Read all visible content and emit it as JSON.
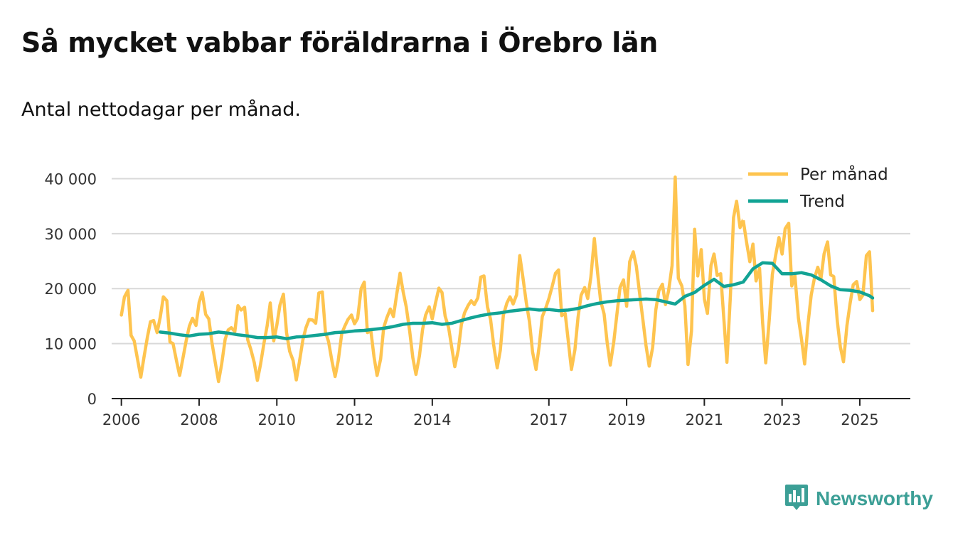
{
  "title": "Så mycket vabbar föräldrarna i Örebro län",
  "subtitle": "Antal nettodagar per månad.",
  "brand": {
    "name": "Newsworthy",
    "icon": "newsworthy-logo-icon"
  },
  "colors": {
    "monthly": "#fec44f",
    "trend": "#12a394",
    "grid": "#d9d9d9",
    "axis": "#222222",
    "brand": "#3c9f96"
  },
  "chart_data": {
    "type": "line",
    "title": "Så mycket vabbar föräldrarna i Örebro län",
    "ylabel": "Antal nettodagar per månad.",
    "xlabel": "",
    "ylim": [
      0,
      42000
    ],
    "xlim": [
      2005.75,
      2026.3
    ],
    "yticks": [
      0,
      10000,
      20000,
      30000,
      40000
    ],
    "ytick_labels": [
      "0",
      "10 000",
      "20 000",
      "30 000",
      "40 000"
    ],
    "xticks": [
      2006,
      2008,
      2010,
      2012,
      2014,
      2017,
      2019,
      2021,
      2023,
      2025
    ],
    "xtick_labels": [
      "2006",
      "2008",
      "2010",
      "2012",
      "2014",
      "2017",
      "2019",
      "2021",
      "2023",
      "2025"
    ],
    "legend": {
      "position": "top-right",
      "entries": [
        "Per månad",
        "Trend"
      ]
    },
    "series": [
      {
        "name": "Per månad",
        "color": "#fec44f",
        "x": [
          2006.0,
          2006.08,
          2006.17,
          2006.25,
          2006.33,
          2006.42,
          2006.5,
          2006.58,
          2006.67,
          2006.75,
          2006.83,
          2006.92,
          2007.0,
          2007.08,
          2007.17,
          2007.25,
          2007.33,
          2007.42,
          2007.5,
          2007.58,
          2007.67,
          2007.75,
          2007.83,
          2007.92,
          2008.0,
          2008.08,
          2008.17,
          2008.25,
          2008.33,
          2008.42,
          2008.5,
          2008.58,
          2008.67,
          2008.75,
          2008.83,
          2008.92,
          2009.0,
          2009.08,
          2009.17,
          2009.25,
          2009.33,
          2009.42,
          2009.5,
          2009.58,
          2009.67,
          2009.75,
          2009.83,
          2009.92,
          2010.0,
          2010.08,
          2010.17,
          2010.25,
          2010.33,
          2010.42,
          2010.5,
          2010.58,
          2010.67,
          2010.75,
          2010.83,
          2010.92,
          2011.0,
          2011.08,
          2011.17,
          2011.25,
          2011.33,
          2011.42,
          2011.5,
          2011.58,
          2011.67,
          2011.75,
          2011.83,
          2011.92,
          2012.0,
          2012.08,
          2012.17,
          2012.25,
          2012.33,
          2012.42,
          2012.5,
          2012.58,
          2012.67,
          2012.75,
          2012.83,
          2012.92,
          2013.0,
          2013.08,
          2013.17,
          2013.25,
          2013.33,
          2013.42,
          2013.5,
          2013.58,
          2013.67,
          2013.75,
          2013.83,
          2013.92,
          2014.0,
          2014.08,
          2014.17,
          2014.25,
          2014.33,
          2014.42,
          2014.5,
          2014.58,
          2014.67,
          2014.75,
          2014.83,
          2014.92,
          2015.0,
          2015.08,
          2015.17,
          2015.25,
          2015.33,
          2015.42,
          2015.5,
          2015.58,
          2015.67,
          2015.75,
          2015.83,
          2015.92,
          2016.0,
          2016.08,
          2016.17,
          2016.25,
          2016.33,
          2016.42,
          2016.5,
          2016.58,
          2016.67,
          2016.75,
          2016.83,
          2016.92,
          2017.0,
          2017.08,
          2017.17,
          2017.25,
          2017.33,
          2017.42,
          2017.5,
          2017.58,
          2017.67,
          2017.75,
          2017.83,
          2017.92,
          2018.0,
          2018.08,
          2018.17,
          2018.25,
          2018.33,
          2018.42,
          2018.5,
          2018.58,
          2018.67,
          2018.75,
          2018.83,
          2018.92,
          2019.0,
          2019.08,
          2019.17,
          2019.25,
          2019.33,
          2019.42,
          2019.5,
          2019.58,
          2019.67,
          2019.75,
          2019.83,
          2019.92,
          2020.0,
          2020.08,
          2020.17,
          2020.25,
          2020.33,
          2020.42,
          2020.5,
          2020.58,
          2020.67,
          2020.75,
          2020.83,
          2020.92,
          2021.0,
          2021.08,
          2021.17,
          2021.25,
          2021.33,
          2021.42,
          2021.5,
          2021.58,
          2021.67,
          2021.75,
          2021.83,
          2021.92,
          2022.0,
          2022.08,
          2022.17,
          2022.25,
          2022.33,
          2022.42,
          2022.5,
          2022.58,
          2022.67,
          2022.75,
          2022.83,
          2022.92,
          2023.0,
          2023.08,
          2023.17,
          2023.25,
          2023.33,
          2023.42,
          2023.5,
          2023.58,
          2023.67,
          2023.75,
          2023.83,
          2023.92,
          2024.0,
          2024.08,
          2024.17,
          2024.25,
          2024.33,
          2024.42,
          2024.5,
          2024.58,
          2024.67,
          2024.75,
          2024.83,
          2024.92,
          2025.0,
          2025.08,
          2025.17,
          2025.25,
          2025.33
        ],
        "values": [
          15200,
          18500,
          19700,
          11500,
          10500,
          7000,
          3900,
          7500,
          11200,
          14000,
          14200,
          12000,
          14800,
          18500,
          17800,
          10300,
          10000,
          6800,
          4200,
          7200,
          10600,
          13200,
          14600,
          13300,
          17500,
          19300,
          15300,
          14500,
          10200,
          6400,
          3100,
          6300,
          10800,
          12500,
          12900,
          12200,
          16900,
          16100,
          16600,
          10700,
          9000,
          6500,
          3300,
          6200,
          10100,
          13200,
          17400,
          10500,
          13400,
          17000,
          19000,
          12000,
          8600,
          6900,
          3400,
          6600,
          10700,
          12900,
          14400,
          14300,
          13700,
          19200,
          19400,
          12100,
          10400,
          6800,
          4000,
          6900,
          11800,
          13200,
          14400,
          15200,
          13600,
          14600,
          20000,
          21200,
          12000,
          12300,
          7600,
          4200,
          7200,
          12900,
          14700,
          16300,
          14900,
          18800,
          22800,
          19400,
          16700,
          12200,
          7400,
          4400,
          7800,
          12600,
          15200,
          16700,
          14500,
          17300,
          20100,
          19300,
          15000,
          12900,
          9300,
          5800,
          8900,
          13500,
          15600,
          16900,
          17800,
          17100,
          18300,
          22100,
          22300,
          16700,
          14400,
          9700,
          5600,
          8800,
          15200,
          17400,
          18500,
          17200,
          18900,
          26000,
          22100,
          17400,
          14000,
          8500,
          5300,
          9500,
          14900,
          16500,
          18200,
          20300,
          22800,
          23400,
          15100,
          15500,
          10400,
          5300,
          8900,
          14800,
          18800,
          20200,
          18200,
          22100,
          29100,
          23100,
          17800,
          15400,
          10100,
          6100,
          10300,
          15300,
          20200,
          21600,
          16800,
          24900,
          26700,
          24100,
          19400,
          14300,
          9600,
          5900,
          9300,
          16100,
          19600,
          20800,
          17100,
          19600,
          24200,
          40300,
          21900,
          20500,
          16900,
          6200,
          12300,
          30800,
          22300,
          27100,
          18100,
          15500,
          24200,
          26300,
          22400,
          22700,
          14700,
          6600,
          18700,
          32900,
          35900,
          31100,
          32500,
          28700,
          24900,
          28100,
          21400,
          23700,
          13800,
          6500,
          14300,
          22600,
          25900,
          29300,
          26300,
          30900,
          31900,
          20500,
          22400,
          14700,
          10800,
          6300,
          13800,
          18800,
          21800,
          23900,
          21800,
          26300,
          28500,
          22500,
          22200,
          14100,
          9400,
          6700,
          13300,
          17300,
          20700,
          21300,
          18000,
          18800,
          26000,
          26700,
          16000
        ]
      },
      {
        "name": "Trend",
        "color": "#12a394",
        "x": [
          2007.0,
          2007.25,
          2007.5,
          2007.75,
          2008.0,
          2008.25,
          2008.5,
          2008.75,
          2009.0,
          2009.25,
          2009.5,
          2009.75,
          2010.0,
          2010.25,
          2010.5,
          2010.75,
          2011.0,
          2011.25,
          2011.5,
          2011.75,
          2012.0,
          2012.25,
          2012.5,
          2012.75,
          2013.0,
          2013.25,
          2013.5,
          2013.75,
          2014.0,
          2014.25,
          2014.5,
          2014.75,
          2015.0,
          2015.25,
          2015.5,
          2015.75,
          2016.0,
          2016.25,
          2016.5,
          2016.75,
          2017.0,
          2017.25,
          2017.5,
          2017.75,
          2018.0,
          2018.25,
          2018.5,
          2018.75,
          2019.0,
          2019.25,
          2019.5,
          2019.75,
          2020.0,
          2020.25,
          2020.5,
          2020.75,
          2021.0,
          2021.25,
          2021.5,
          2021.75,
          2022.0,
          2022.25,
          2022.5,
          2022.75,
          2023.0,
          2023.25,
          2023.5,
          2023.75,
          2024.0,
          2024.25,
          2024.5,
          2024.75,
          2025.0,
          2025.25,
          2025.33
        ],
        "values": [
          12100,
          11900,
          11600,
          11400,
          11700,
          11800,
          12100,
          11900,
          11600,
          11400,
          11100,
          11100,
          11200,
          10900,
          11200,
          11300,
          11500,
          11700,
          12000,
          12100,
          12300,
          12400,
          12600,
          12800,
          13100,
          13500,
          13700,
          13700,
          13800,
          13500,
          13700,
          14200,
          14700,
          15100,
          15400,
          15600,
          15900,
          16100,
          16300,
          16100,
          16200,
          16000,
          16100,
          16400,
          16900,
          17300,
          17600,
          17800,
          17900,
          18000,
          18100,
          18000,
          17600,
          17200,
          18600,
          19300,
          20600,
          21700,
          20400,
          20700,
          21200,
          23600,
          24700,
          24600,
          22700,
          22700,
          22900,
          22500,
          21600,
          20500,
          19800,
          19700,
          19400,
          18700,
          18300
        ]
      }
    ]
  }
}
